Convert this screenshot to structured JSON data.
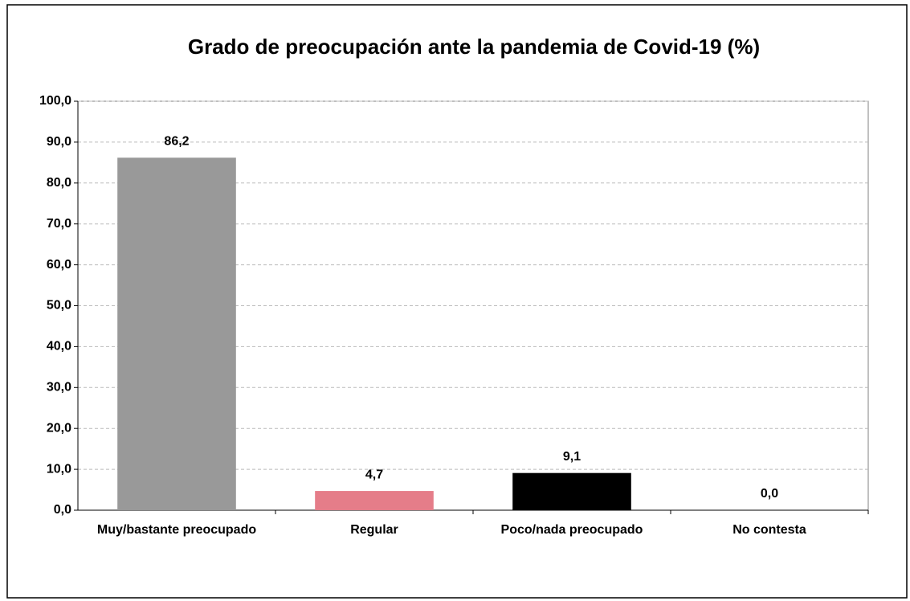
{
  "chart_data": {
    "type": "bar",
    "title": "Grado de preocupación ante la pandemia de Covid-19 (%)",
    "categories": [
      "Muy/bastante preocupado",
      "Regular",
      "Poco/nada preocupado",
      "No contesta"
    ],
    "values": [
      86.2,
      4.7,
      9.1,
      0.0
    ],
    "value_labels": [
      "86,2",
      "4,7",
      "9,1",
      "0,0"
    ],
    "colors": [
      "#999999",
      "#e57d89",
      "#000000",
      "#ffffff"
    ],
    "ylim": [
      0,
      100
    ],
    "yticks": [
      {
        "value": 0,
        "label": "0,0"
      },
      {
        "value": 10,
        "label": "10,0"
      },
      {
        "value": 20,
        "label": "20,0"
      },
      {
        "value": 30,
        "label": "30,0"
      },
      {
        "value": 40,
        "label": "40,0"
      },
      {
        "value": 50,
        "label": "50,0"
      },
      {
        "value": 60,
        "label": "60,0"
      },
      {
        "value": 70,
        "label": "70,0"
      },
      {
        "value": 80,
        "label": "80,0"
      },
      {
        "value": 90,
        "label": "90,0"
      },
      {
        "value": 100,
        "label": "100,0"
      }
    ],
    "grid": true
  }
}
